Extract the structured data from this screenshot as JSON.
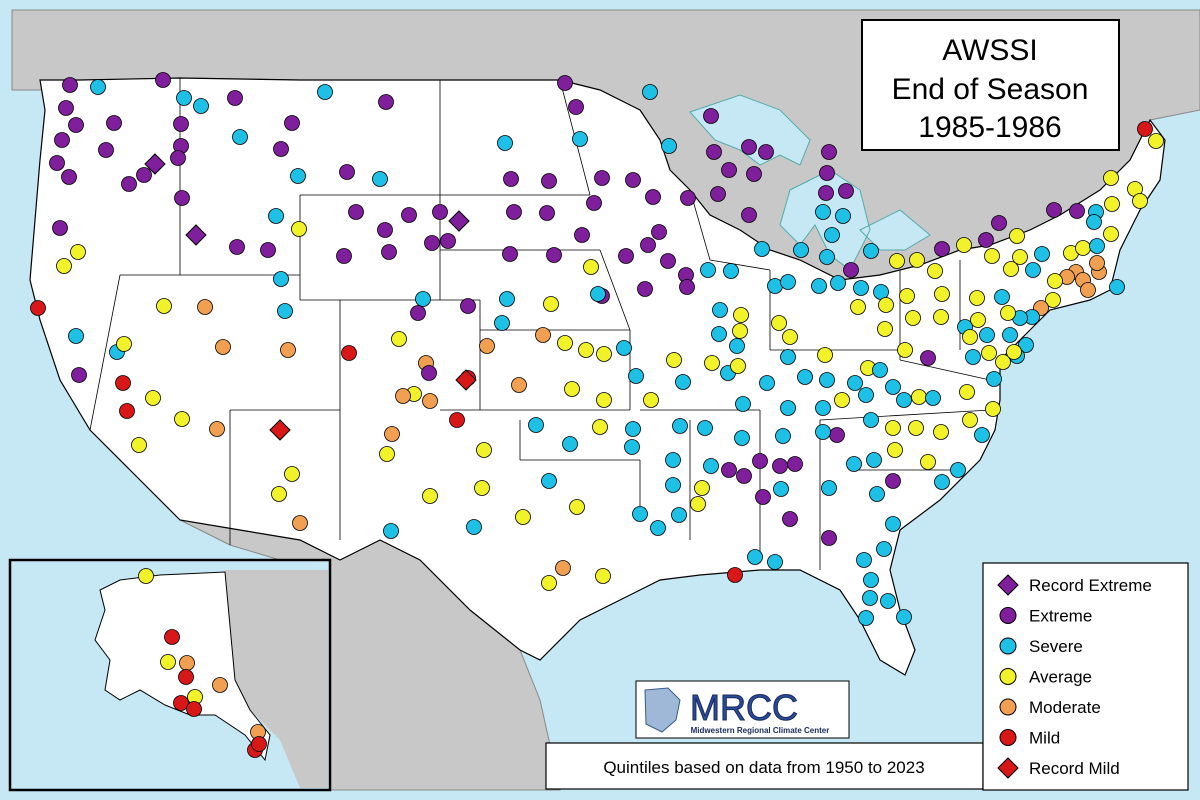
{
  "title": {
    "line1": "AWSSI",
    "line2": "End of Season",
    "line3": "1985-1986"
  },
  "footnote": "Quintiles based on data from 1950 to 2023",
  "logo": {
    "text": "MRCC",
    "subtitle": "Midwestern Regional Climate Center"
  },
  "colors": {
    "ocean": "#c6e8f5",
    "neighbor_land": "#c8c8c8",
    "us_land": "#ffffff",
    "extreme": "#7f1f9b",
    "severe": "#1ec0e6",
    "average": "#f2f22a",
    "moderate": "#f0a050",
    "mild": "#d81818"
  },
  "legend": [
    {
      "key": "record_extreme",
      "label": "Record Extreme",
      "color": "#7f1f9b",
      "shape": "diamond"
    },
    {
      "key": "extreme",
      "label": "Extreme",
      "color": "#7f1f9b",
      "shape": "circle"
    },
    {
      "key": "severe",
      "label": "Severe",
      "color": "#1ec0e6",
      "shape": "circle"
    },
    {
      "key": "average",
      "label": "Average",
      "color": "#f2f22a",
      "shape": "circle"
    },
    {
      "key": "moderate",
      "label": "Moderate",
      "color": "#f0a050",
      "shape": "circle"
    },
    {
      "key": "mild",
      "label": "Mild",
      "color": "#d81818",
      "shape": "circle"
    },
    {
      "key": "record_mild",
      "label": "Record Mild",
      "color": "#d81818",
      "shape": "diamond"
    }
  ]
}
